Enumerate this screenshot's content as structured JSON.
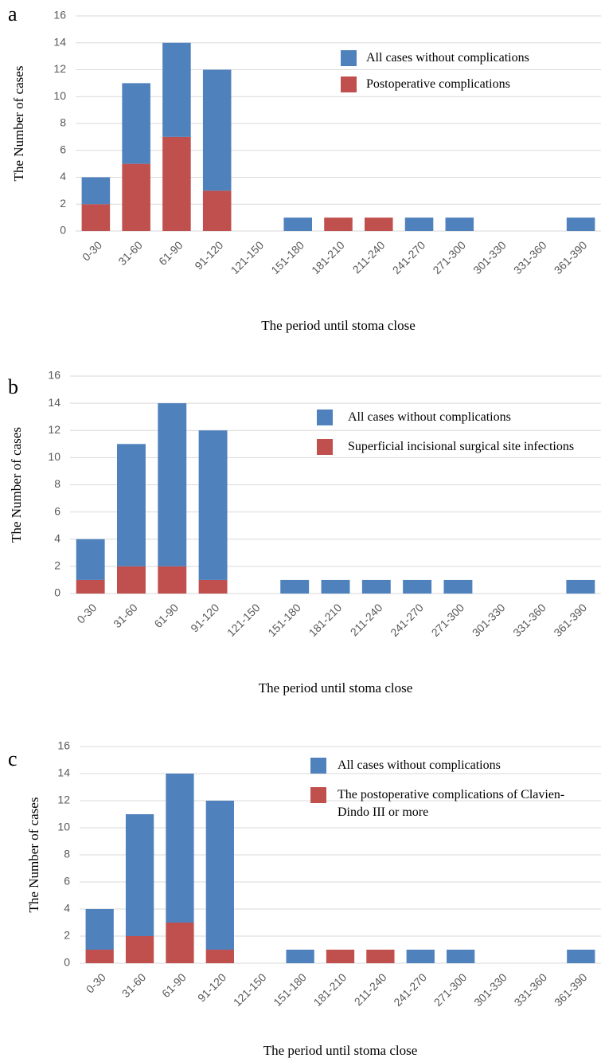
{
  "chart_data": [
    {
      "type": "bar",
      "stacked": true,
      "panel_label": "a",
      "y_label": "The Number of cases",
      "x_label": "The period until stoma close",
      "categories": [
        "0-30",
        "31-60",
        "61-90",
        "91-120",
        "121-150",
        "151-180",
        "181-210",
        "211-240",
        "241-270",
        "271-300",
        "301-330",
        "331-360",
        "361-390"
      ],
      "series": [
        {
          "name": "All cases without complications",
          "color": "#4f81bd",
          "values": [
            2,
            6,
            7,
            9,
            0,
            1,
            0,
            0,
            1,
            1,
            0,
            0,
            1
          ]
        },
        {
          "name": "Postoperative complications",
          "color": "#c0504d",
          "values": [
            2,
            5,
            7,
            3,
            0,
            0,
            1,
            1,
            0,
            0,
            0,
            0,
            0
          ]
        }
      ],
      "ylim": [
        0,
        16
      ],
      "yticks": [
        0,
        2,
        4,
        6,
        8,
        10,
        12,
        14,
        16
      ],
      "grid": true
    },
    {
      "type": "bar",
      "stacked": true,
      "panel_label": "b",
      "y_label": "The Number of cases",
      "x_label": "The period until stoma close",
      "categories": [
        "0-30",
        "31-60",
        "61-90",
        "91-120",
        "121-150",
        "151-180",
        "181-210",
        "211-240",
        "241-270",
        "271-300",
        "301-330",
        "331-360",
        "361-390"
      ],
      "series": [
        {
          "name": "All cases without complications",
          "color": "#4f81bd",
          "values": [
            3,
            9,
            12,
            11,
            0,
            1,
            1,
            1,
            1,
            1,
            0,
            0,
            1
          ]
        },
        {
          "name": "Superficial incisional surgical site infections",
          "color": "#c0504d",
          "values": [
            1,
            2,
            2,
            1,
            0,
            0,
            0,
            0,
            0,
            0,
            0,
            0,
            0
          ]
        }
      ],
      "ylim": [
        0,
        16
      ],
      "yticks": [
        0,
        2,
        4,
        6,
        8,
        10,
        12,
        14,
        16
      ],
      "grid": true
    },
    {
      "type": "bar",
      "stacked": true,
      "panel_label": "c",
      "y_label": "The Number of cases",
      "x_label": "The period until stoma close",
      "categories": [
        "0-30",
        "31-60",
        "61-90",
        "91-120",
        "121-150",
        "151-180",
        "181-210",
        "211-240",
        "241-270",
        "271-300",
        "301-330",
        "331-360",
        "361-390"
      ],
      "series": [
        {
          "name": "All cases without complications",
          "color": "#4f81bd",
          "values": [
            3,
            9,
            11,
            11,
            0,
            1,
            0,
            0,
            1,
            1,
            0,
            0,
            1
          ]
        },
        {
          "name": "The postoperative complications of Clavien-Dindo III or more",
          "color": "#c0504d",
          "values": [
            1,
            2,
            3,
            1,
            0,
            0,
            1,
            1,
            0,
            0,
            0,
            0,
            0
          ]
        }
      ],
      "ylim": [
        0,
        16
      ],
      "yticks": [
        0,
        2,
        4,
        6,
        8,
        10,
        12,
        14,
        16
      ],
      "grid": true
    }
  ]
}
